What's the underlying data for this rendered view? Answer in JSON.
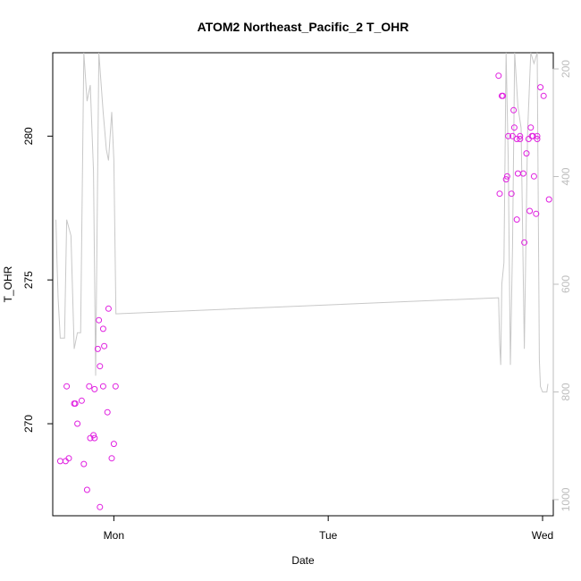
{
  "chart_data": {
    "type": "scatter",
    "title": "ATOM2 Northeast_Pacific_2 T_OHR",
    "xlabel": "Date",
    "ylabel": "T_OHR",
    "x_ticks": [
      "Mon",
      "Tue",
      "Wed"
    ],
    "x_tick_values": [
      1.0,
      2.0,
      3.0
    ],
    "xlim": [
      0.715,
      3.05
    ],
    "ylim": [
      266.8,
      282.9
    ],
    "y_ticks": [
      270,
      275,
      280
    ],
    "y2_ticks": [
      200,
      400,
      600,
      800,
      1000
    ],
    "y2lim": [
      1030,
      170
    ],
    "y2_reversed": true,
    "grid": false,
    "series": [
      {
        "kind": "points",
        "color": "#e020e0",
        "x": [
          0.75,
          0.775,
          0.79,
          0.815,
          0.83,
          0.86,
          0.875,
          0.89,
          0.91,
          0.935,
          0.95,
          1.0,
          0.85,
          0.885,
          0.905,
          0.91,
          0.935,
          0.955,
          0.975,
          1.008,
          0.925,
          0.93,
          0.95,
          0.97,
          0.99,
          0.78,
          0.82,
          2.795,
          2.81,
          2.83,
          2.84,
          2.855,
          2.865,
          2.88,
          2.885,
          2.895,
          2.915,
          2.935,
          2.94,
          2.955,
          2.97,
          2.975,
          2.99,
          3.005,
          2.945,
          2.96,
          2.925,
          2.88,
          2.868,
          2.895,
          2.91,
          2.95,
          2.975,
          3.03,
          2.8,
          2.815,
          2.835,
          2.86
        ],
        "y": [
          268.7,
          268.7,
          268.8,
          270.7,
          270.0,
          268.6,
          267.7,
          269.5,
          269.5,
          267.1,
          271.3,
          269.3,
          270.8,
          271.3,
          269.6,
          271.2,
          272.0,
          272.7,
          274.0,
          271.3,
          272.6,
          273.6,
          273.3,
          270.4,
          268.8,
          271.3,
          270.7,
          282.1,
          281.4,
          278.5,
          280.0,
          278.0,
          280.9,
          277.1,
          278.7,
          280.0,
          276.3,
          279.9,
          277.4,
          280.0,
          277.3,
          280.0,
          281.7,
          281.4,
          280.3,
          278.6,
          279.4,
          279.9,
          280.3,
          279.9,
          278.7,
          280.0,
          279.9,
          277.8,
          278.0,
          281.4,
          278.6,
          280.0
        ]
      },
      {
        "kind": "line",
        "color": "#c8c8c8",
        "axis": "right",
        "x": [
          0.73,
          0.735,
          0.74,
          0.75,
          0.77,
          0.78,
          0.8,
          0.815,
          0.83,
          0.845,
          0.86,
          0.875,
          0.89,
          0.905,
          0.915,
          0.93,
          0.95,
          0.965,
          0.975,
          0.99,
          1.0,
          1.01,
          2.795,
          2.8,
          2.805,
          2.81,
          2.82,
          2.83,
          2.84,
          2.85,
          2.86,
          2.87,
          2.885,
          2.9,
          2.915,
          2.93,
          2.945,
          2.96,
          2.975,
          2.985,
          2.99,
          3.0,
          3.02,
          3.025
        ],
        "y": [
          480,
          560,
          625,
          700,
          700,
          480,
          510,
          720,
          690,
          690,
          170,
          260,
          230,
          390,
          770,
          170,
          280,
          350,
          370,
          280,
          370,
          655,
          625,
          710,
          750,
          600,
          560,
          170,
          370,
          750,
          530,
          170,
          270,
          310,
          720,
          320,
          170,
          190,
          170,
          740,
          790,
          800,
          800,
          785
        ]
      }
    ]
  }
}
